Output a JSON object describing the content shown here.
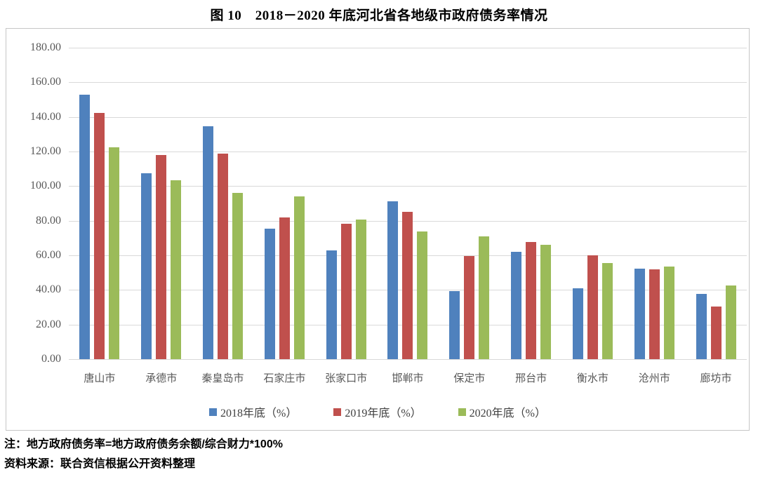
{
  "page": {
    "title": "图 10　2018－2020 年底河北省各地级市政府债务率情况",
    "notes": [
      "注：地方政府债务率=地方政府债务余额/综合财力*100%",
      "资料来源：联合资信根据公开资料整理"
    ]
  },
  "chart_data": {
    "type": "bar",
    "title": "图 10　2018－2020 年底河北省各地级市政府债务率情况",
    "categories": [
      "唐山市",
      "承德市",
      "秦皇岛市",
      "石家庄市",
      "张家口市",
      "邯郸市",
      "保定市",
      "邢台市",
      "衡水市",
      "沧州市",
      "廊坊市"
    ],
    "series": [
      {
        "name": "2018年底（%）",
        "color": "#4F81BD",
        "values": [
          152.9,
          107.5,
          134.5,
          75.4,
          62.7,
          91.2,
          39.4,
          62.1,
          40.9,
          52.2,
          37.6
        ]
      },
      {
        "name": "2019年底（%）",
        "color": "#C0504D",
        "values": [
          142.2,
          117.8,
          118.8,
          81.9,
          78.1,
          85.3,
          59.6,
          67.7,
          59.9,
          52.0,
          30.5
        ]
      },
      {
        "name": "2020年底（%）",
        "color": "#9BBB59",
        "values": [
          122.4,
          103.4,
          96.1,
          94.2,
          80.6,
          73.8,
          71.1,
          66.2,
          55.7,
          53.4,
          42.7
        ]
      }
    ],
    "ylim": [
      0,
      180
    ],
    "ytick_step": 20,
    "ytick_labels": [
      "180.00",
      "160.00",
      "140.00",
      "120.00",
      "100.00",
      "80.00",
      "60.00",
      "40.00",
      "20.00",
      "0.00"
    ],
    "grid": true,
    "legend_position": "bottom",
    "style": {
      "grid_color": "#D9D9D9",
      "axis_text_color": "#595959",
      "box_border_color": "#C6C6C6"
    }
  }
}
